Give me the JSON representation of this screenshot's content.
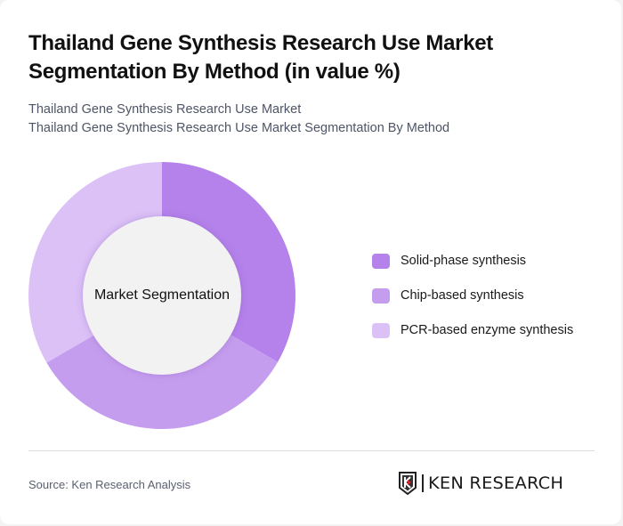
{
  "header": {
    "title": "Thailand Gene Synthesis Research Use Market Segmentation By Method (in value %)",
    "subtitle_line1": "Thailand Gene Synthesis Research Use Market",
    "subtitle_line2": "Thailand Gene Synthesis Research Use Market Segmentation By Method"
  },
  "chart": {
    "center_label": "Market Segmentation"
  },
  "legend": {
    "items": [
      {
        "label": "Solid-phase synthesis",
        "color": "#B482EA"
      },
      {
        "label": "Chip-based synthesis",
        "color": "#C59DEE"
      },
      {
        "label": "PCR-based enzyme synthesis",
        "color": "#DBC1F6"
      }
    ]
  },
  "footer": {
    "source": "Source: Ken Research Analysis",
    "logo_text": "KEN RESEARCH",
    "logo_accent_color": "#D9262C"
  },
  "chart_data": {
    "type": "pie",
    "variant": "donut",
    "title": "Thailand Gene Synthesis Research Use Market Segmentation By Method (in value %)",
    "subtitle": "Thailand Gene Synthesis Research Use Market Segmentation By Method",
    "center_label": "Market Segmentation",
    "categories": [
      "Solid-phase synthesis",
      "Chip-based synthesis",
      "PCR-based enzyme synthesis"
    ],
    "values": [
      33.3,
      33.3,
      33.4
    ],
    "colors": [
      "#B482EA",
      "#C59DEE",
      "#DBC1F6"
    ],
    "start_angle_deg": 0,
    "direction": "clockwise",
    "legend_position": "right",
    "data_labels_shown": false
  }
}
